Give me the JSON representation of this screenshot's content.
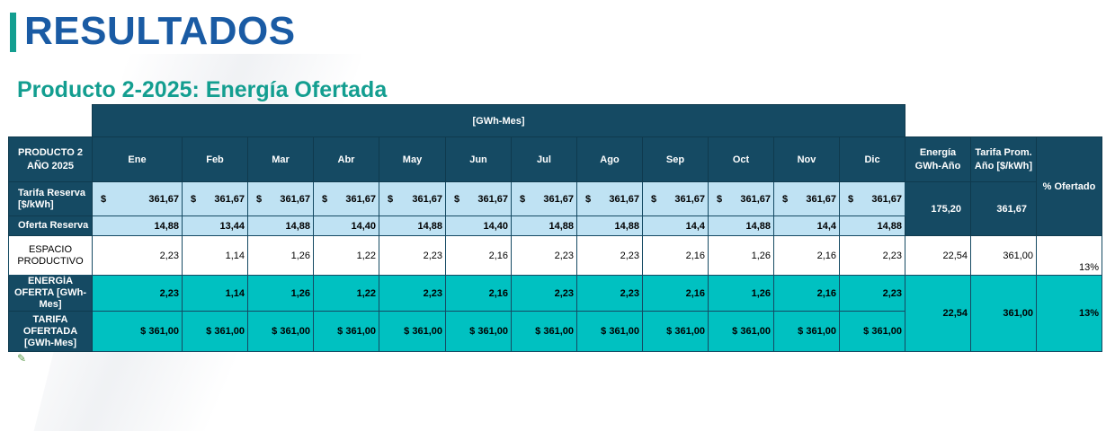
{
  "page": {
    "title": "RESULTADOS",
    "subtitle": "Producto 2-2025: Energía Ofertada"
  },
  "table": {
    "unit_header": "[GWh-Mes]",
    "product_label_line1": "PRODUCTO 2",
    "product_label_line2": "AÑO 2025",
    "months": [
      "Ene",
      "Feb",
      "Mar",
      "Abr",
      "May",
      "Jun",
      "Jul",
      "Ago",
      "Sep",
      "Oct",
      "Nov",
      "Dic"
    ],
    "energia_anual_header": "Energía GWh-Año",
    "tarifa_prom_header": "Tarifa Prom. Año [$/kWh]",
    "pct_ofertado_header": "% Ofertado",
    "currency_symbol": "$",
    "rows": {
      "tarifa_reserva": {
        "label": "Tarifa Reserva [$/kWh]",
        "values": [
          "361,67",
          "361,67",
          "361,67",
          "361,67",
          "361,67",
          "361,67",
          "361,67",
          "361,67",
          "361,67",
          "361,67",
          "361,67",
          "361,67"
        ]
      },
      "oferta_reserva": {
        "label": "Oferta Reserva",
        "values": [
          "14,88",
          "13,44",
          "14,88",
          "14,40",
          "14,88",
          "14,40",
          "14,88",
          "14,88",
          "14,4",
          "14,88",
          "14,4",
          "14,88"
        ]
      },
      "reserva_totals": {
        "energia": "175,20",
        "tarifa": "361,67"
      },
      "espacio_productivo": {
        "label": "ESPACIO PRODUCTIVO",
        "values": [
          "2,23",
          "1,14",
          "1,26",
          "1,22",
          "2,23",
          "2,16",
          "2,23",
          "2,23",
          "2,16",
          "1,26",
          "2,16",
          "2,23"
        ],
        "energia": "22,54",
        "tarifa": "361,00",
        "pct": "13%"
      },
      "energia_oferta": {
        "label": "ENERGÍA OFERTA [GWh-Mes]",
        "values": [
          "2,23",
          "1,14",
          "1,26",
          "1,22",
          "2,23",
          "2,16",
          "2,23",
          "2,23",
          "2,16",
          "1,26",
          "2,16",
          "2,23"
        ]
      },
      "tarifa_ofertada": {
        "label": "TARIFA OFERTADA [GWh-Mes]",
        "values": [
          "$ 361,00",
          "$ 361,00",
          "$ 361,00",
          "$ 361,00",
          "$ 361,00",
          "$ 361,00",
          "$ 361,00",
          "$ 361,00",
          "$ 361,00",
          "$ 361,00",
          "$ 361,00",
          "$ 361,00"
        ]
      },
      "oferta_totals": {
        "energia": "22,54",
        "tarifa": "361,00",
        "pct": "13%"
      }
    }
  },
  "colors": {
    "title": "#1a5ba4",
    "accent": "#139e90",
    "header_dark": "#154a63",
    "light_blue": "#bfe2f3",
    "teal": "#00c1c1"
  }
}
